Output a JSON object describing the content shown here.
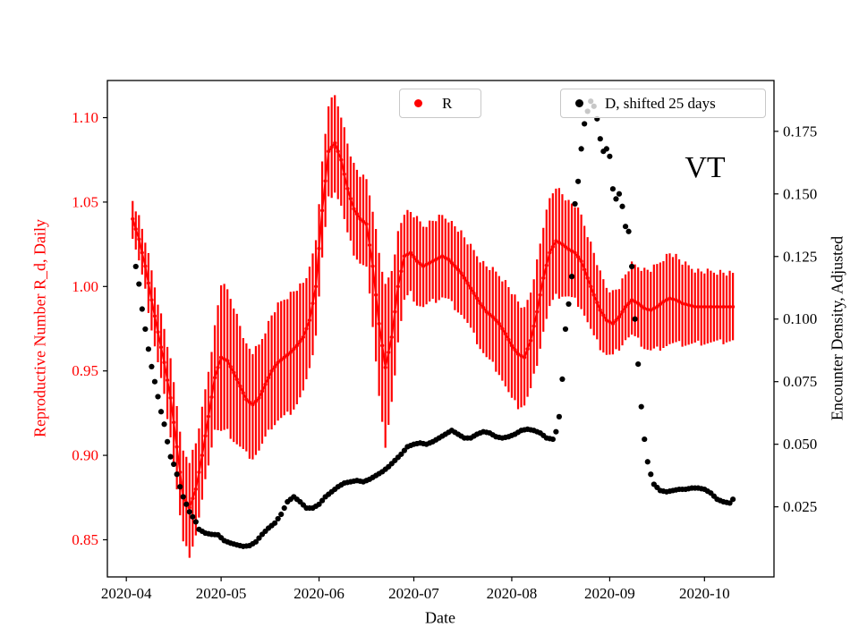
{
  "chart_data": {
    "type": "scatter",
    "annotation": "VT",
    "xlabel": "Date",
    "x_unit": "days since 2020-04-01",
    "x_range": [
      -6,
      205
    ],
    "x_ticks": {
      "days": [
        0,
        30,
        61,
        91,
        122,
        153,
        183
      ],
      "labels": [
        "2020-04",
        "2020-05",
        "2020-06",
        "2020-07",
        "2020-08",
        "2020-09",
        "2020-10"
      ]
    },
    "axes": {
      "left": {
        "label": "Reproductive Number R_d, Daily",
        "color": "#ff0000",
        "range": [
          0.828,
          1.122
        ],
        "tick_values": [
          0.85,
          0.9,
          0.95,
          1.0,
          1.05,
          1.1
        ],
        "tick_labels": [
          "0.85",
          "0.90",
          "0.95",
          "1.00",
          "1.05",
          "1.10"
        ]
      },
      "right": {
        "label": "Encounter Density, Adjusted",
        "color": "#000000",
        "range": [
          -0.003,
          0.1953
        ],
        "tick_values": [
          0.025,
          0.05,
          0.075,
          0.1,
          0.125,
          0.15,
          0.175
        ],
        "tick_labels": [
          "0.025",
          "0.050",
          "0.075",
          "0.100",
          "0.125",
          "0.150",
          "0.175"
        ]
      }
    },
    "legend": [
      {
        "label": "R",
        "color": "#ff0000"
      },
      {
        "label": "D, shifted 25 days",
        "color": "#000000"
      }
    ],
    "series": {
      "R": {
        "name": "R",
        "axis": "left",
        "color": "#ff0000",
        "x": [
          2,
          4,
          6,
          8,
          10,
          12,
          14,
          16,
          18,
          20,
          22,
          24,
          26,
          28,
          30,
          32,
          34,
          36,
          38,
          40,
          42,
          44,
          46,
          48,
          50,
          52,
          54,
          56,
          58,
          60,
          62,
          64,
          66,
          68,
          70,
          72,
          74,
          76,
          78,
          80,
          82,
          84,
          86,
          88,
          90,
          92,
          94,
          96,
          98,
          100,
          102,
          104,
          106,
          108,
          110,
          112,
          114,
          116,
          118,
          120,
          122,
          124,
          126,
          128,
          130,
          132,
          134,
          136,
          138,
          140,
          142,
          144,
          146,
          148,
          150,
          152,
          154,
          156,
          158,
          160,
          162,
          164,
          166,
          168,
          170,
          172,
          174,
          176,
          178,
          180,
          182,
          184,
          186,
          188,
          190,
          192
        ],
        "y": [
          1.04,
          1.028,
          1.012,
          0.992,
          0.973,
          0.955,
          0.934,
          0.905,
          0.875,
          0.869,
          0.88,
          0.9,
          0.923,
          0.946,
          0.958,
          0.956,
          0.949,
          0.941,
          0.933,
          0.93,
          0.934,
          0.942,
          0.95,
          0.955,
          0.958,
          0.961,
          0.965,
          0.97,
          0.98,
          1.0,
          1.045,
          1.08,
          1.085,
          1.075,
          1.058,
          1.046,
          1.04,
          1.037,
          1.012,
          0.978,
          0.952,
          0.97,
          1.0,
          1.018,
          1.02,
          1.015,
          1.012,
          1.014,
          1.016,
          1.018,
          1.016,
          1.012,
          1.008,
          1.002,
          0.996,
          0.99,
          0.985,
          0.982,
          0.978,
          0.972,
          0.965,
          0.96,
          0.958,
          0.968,
          0.985,
          1.005,
          1.02,
          1.027,
          1.025,
          1.022,
          1.02,
          1.015,
          1.005,
          0.995,
          0.986,
          0.98,
          0.978,
          0.982,
          0.988,
          0.992,
          0.99,
          0.987,
          0.986,
          0.988,
          0.991,
          0.993,
          0.992,
          0.99,
          0.989,
          0.988,
          0.988,
          0.988,
          0.988,
          0.988,
          0.988,
          0.988
        ],
        "y_err": [
          0.011,
          0.013,
          0.015,
          0.017,
          0.018,
          0.02,
          0.022,
          0.025,
          0.027,
          0.028,
          0.027,
          0.027,
          0.027,
          0.03,
          0.044,
          0.042,
          0.04,
          0.036,
          0.032,
          0.031,
          0.031,
          0.032,
          0.033,
          0.034,
          0.035,
          0.035,
          0.034,
          0.032,
          0.03,
          0.028,
          0.028,
          0.028,
          0.028,
          0.027,
          0.027,
          0.026,
          0.026,
          0.026,
          0.034,
          0.042,
          0.048,
          0.04,
          0.032,
          0.026,
          0.024,
          0.025,
          0.024,
          0.024,
          0.024,
          0.024,
          0.024,
          0.024,
          0.024,
          0.024,
          0.025,
          0.026,
          0.027,
          0.028,
          0.029,
          0.031,
          0.032,
          0.031,
          0.028,
          0.029,
          0.03,
          0.031,
          0.032,
          0.033,
          0.03,
          0.028,
          0.028,
          0.027,
          0.026,
          0.025,
          0.022,
          0.02,
          0.019,
          0.018,
          0.019,
          0.021,
          0.022,
          0.023,
          0.024,
          0.025,
          0.026,
          0.027,
          0.026,
          0.024,
          0.023,
          0.022,
          0.021,
          0.021,
          0.021,
          0.021,
          0.02,
          0.02
        ]
      },
      "D": {
        "name": "D, shifted 25 days",
        "axis": "right",
        "color": "#000000",
        "x": [
          3,
          4,
          5,
          6,
          7,
          8,
          9,
          10,
          11,
          12,
          13,
          14,
          15,
          16,
          17,
          18,
          19,
          20,
          21,
          22,
          23,
          25,
          27,
          29,
          31,
          33,
          35,
          37,
          39,
          41,
          43,
          45,
          47,
          49,
          51,
          53,
          55,
          57,
          59,
          61,
          63,
          65,
          67,
          69,
          71,
          73,
          75,
          77,
          79,
          81,
          83,
          85,
          87,
          89,
          91,
          93,
          95,
          97,
          99,
          101,
          103,
          105,
          107,
          109,
          111,
          113,
          115,
          117,
          119,
          121,
          123,
          125,
          127,
          129,
          131,
          133,
          135,
          136,
          137,
          138,
          139,
          140,
          141,
          142,
          143,
          144,
          145,
          146,
          147,
          148,
          149,
          150,
          151,
          152,
          153,
          154,
          155,
          156,
          157,
          158,
          159,
          160,
          161,
          162,
          163,
          164,
          165,
          166,
          167,
          169,
          171,
          173,
          175,
          177,
          179,
          181,
          183,
          185,
          187,
          189,
          191,
          192
        ],
        "y": [
          0.121,
          0.114,
          0.104,
          0.096,
          0.088,
          0.081,
          0.075,
          0.069,
          0.063,
          0.058,
          0.051,
          0.045,
          0.042,
          0.038,
          0.033,
          0.029,
          0.026,
          0.023,
          0.021,
          0.019,
          0.016,
          0.0145,
          0.014,
          0.0138,
          0.0115,
          0.0105,
          0.0098,
          0.0092,
          0.0095,
          0.011,
          0.014,
          0.0165,
          0.0185,
          0.022,
          0.027,
          0.029,
          0.027,
          0.0245,
          0.0245,
          0.026,
          0.029,
          0.031,
          0.033,
          0.0345,
          0.035,
          0.0355,
          0.035,
          0.036,
          0.0375,
          0.039,
          0.041,
          0.0435,
          0.046,
          0.049,
          0.05,
          0.0505,
          0.05,
          0.051,
          0.0525,
          0.054,
          0.0555,
          0.054,
          0.0525,
          0.0525,
          0.054,
          0.055,
          0.0545,
          0.053,
          0.0525,
          0.053,
          0.054,
          0.0555,
          0.056,
          0.0555,
          0.0545,
          0.0525,
          0.052,
          0.055,
          0.061,
          0.076,
          0.096,
          0.106,
          0.117,
          0.146,
          0.155,
          0.168,
          0.178,
          0.183,
          0.187,
          0.185,
          0.18,
          0.172,
          0.167,
          0.168,
          0.165,
          0.152,
          0.148,
          0.15,
          0.145,
          0.137,
          0.135,
          0.121,
          0.1,
          0.082,
          0.065,
          0.052,
          0.043,
          0.038,
          0.034,
          0.0315,
          0.031,
          0.0315,
          0.032,
          0.032,
          0.0325,
          0.0325,
          0.032,
          0.0305,
          0.028,
          0.027,
          0.0265,
          0.028
        ]
      }
    }
  }
}
